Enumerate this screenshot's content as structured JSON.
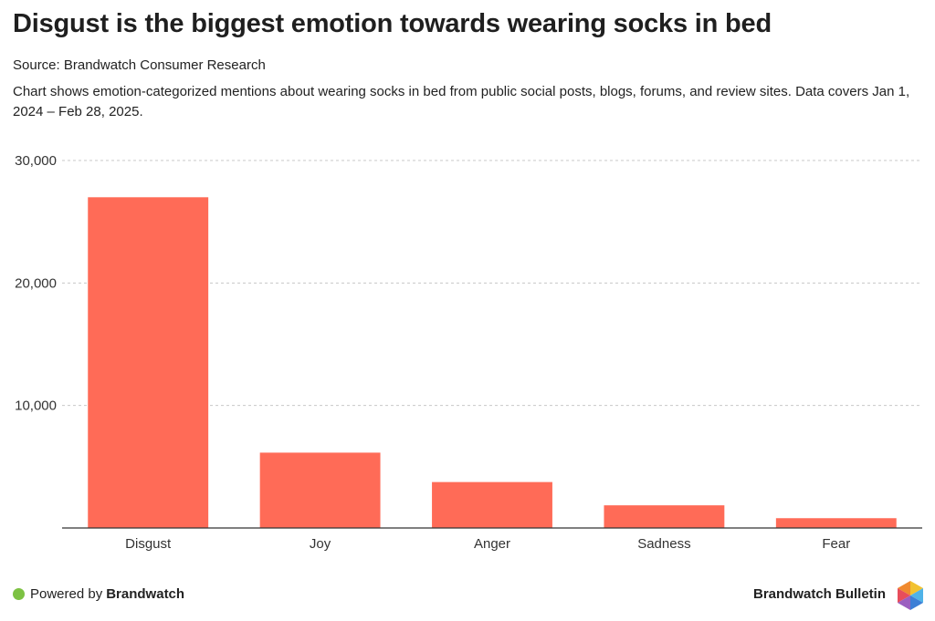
{
  "title": "Disgust is the biggest emotion towards wearing socks in bed",
  "source": "Source: Brandwatch Consumer Research",
  "description": "Chart shows emotion-categorized mentions about wearing socks in bed from public social posts, blogs, forums, and review sites. Data covers Jan 1, 2024 – Feb 28, 2025.",
  "footer": {
    "powered_prefix": "Powered by",
    "powered_brand": "Brandwatch",
    "bulletin": "Brandwatch Bulletin",
    "dot_color": "#7dc243",
    "logo_icon": "brandwatch-hexagon-logo"
  },
  "colors": {
    "bar": "#ff6b57",
    "grid": "#c8c8c8",
    "axis": "#333333"
  },
  "chart_data": {
    "type": "bar",
    "categories": [
      "Disgust",
      "Joy",
      "Anger",
      "Sadness",
      "Fear"
    ],
    "values": [
      27000,
      6150,
      3750,
      1850,
      800
    ],
    "ylim": [
      0,
      30000
    ],
    "yticks": [
      10000,
      20000,
      30000
    ],
    "ytick_labels": [
      "10,000",
      "20,000",
      "30,000"
    ],
    "grid": true,
    "legend": false
  }
}
